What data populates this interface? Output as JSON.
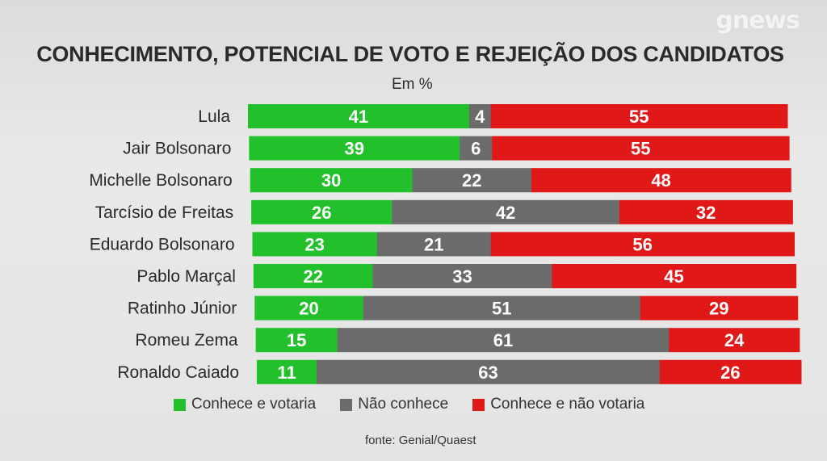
{
  "brand": "news",
  "brand_prefix": "g",
  "chart_data": {
    "type": "bar",
    "orientation": "horizontal",
    "stacked": true,
    "title": "CONHECIMENTO, POTENCIAL DE VOTO E REJEIÇÃO DOS CANDIDATOS",
    "subtitle": "Em %",
    "categories": [
      "Lula",
      "Jair Bolsonaro",
      "Michelle Bolsonaro",
      "Tarcísio de Freitas",
      "Eduardo Bolsonaro",
      "Pablo Marçal",
      "Ratinho Júnior",
      "Romeu Zema",
      "Ronaldo Caiado"
    ],
    "series": [
      {
        "name": "Conhece e votaria",
        "color": "#22c02a",
        "values": [
          41,
          39,
          30,
          26,
          23,
          22,
          20,
          15,
          11
        ]
      },
      {
        "name": "Não conhece",
        "color": "#6b6b6b",
        "values": [
          4,
          6,
          22,
          42,
          21,
          33,
          51,
          61,
          63
        ]
      },
      {
        "name": "Conhece e não votaria",
        "color": "#e01818",
        "values": [
          55,
          55,
          48,
          32,
          56,
          45,
          29,
          24,
          26
        ]
      }
    ],
    "legend_position": "bottom",
    "grid": false,
    "source": "fonte: Genial/Quaest"
  }
}
